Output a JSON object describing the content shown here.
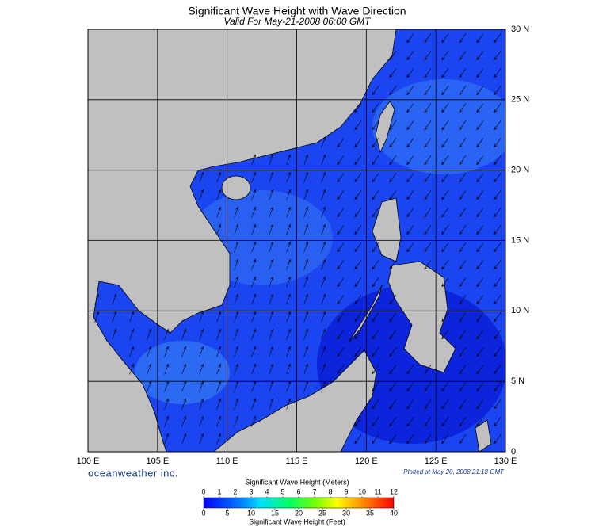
{
  "header": {
    "title": "Significant Wave Height with Wave Direction",
    "subtitle": "Valid For May-21-2008 06:00 GMT"
  },
  "map": {
    "lon_labels": [
      "100 E",
      "105 E",
      "110 E",
      "115 E",
      "120 E",
      "125 E",
      "130 E"
    ],
    "lat_labels": [
      "30 N",
      "25 N",
      "20 N",
      "15 N",
      "10 N",
      "5 N",
      "0"
    ]
  },
  "footer": {
    "brand": "oceanweather inc.",
    "plotted": "Plotted at May 20, 2008 21:18 GMT"
  },
  "colorbar": {
    "meters_title": "Significant Wave Height (Meters)",
    "meters_ticks": [
      0,
      1,
      2,
      3,
      4,
      5,
      6,
      7,
      8,
      9,
      10,
      11,
      12
    ],
    "feet_title": "Significant Wave Height (Feet)",
    "feet_ticks": [
      0,
      5,
      10,
      15,
      20,
      25,
      30,
      35,
      40
    ]
  }
}
